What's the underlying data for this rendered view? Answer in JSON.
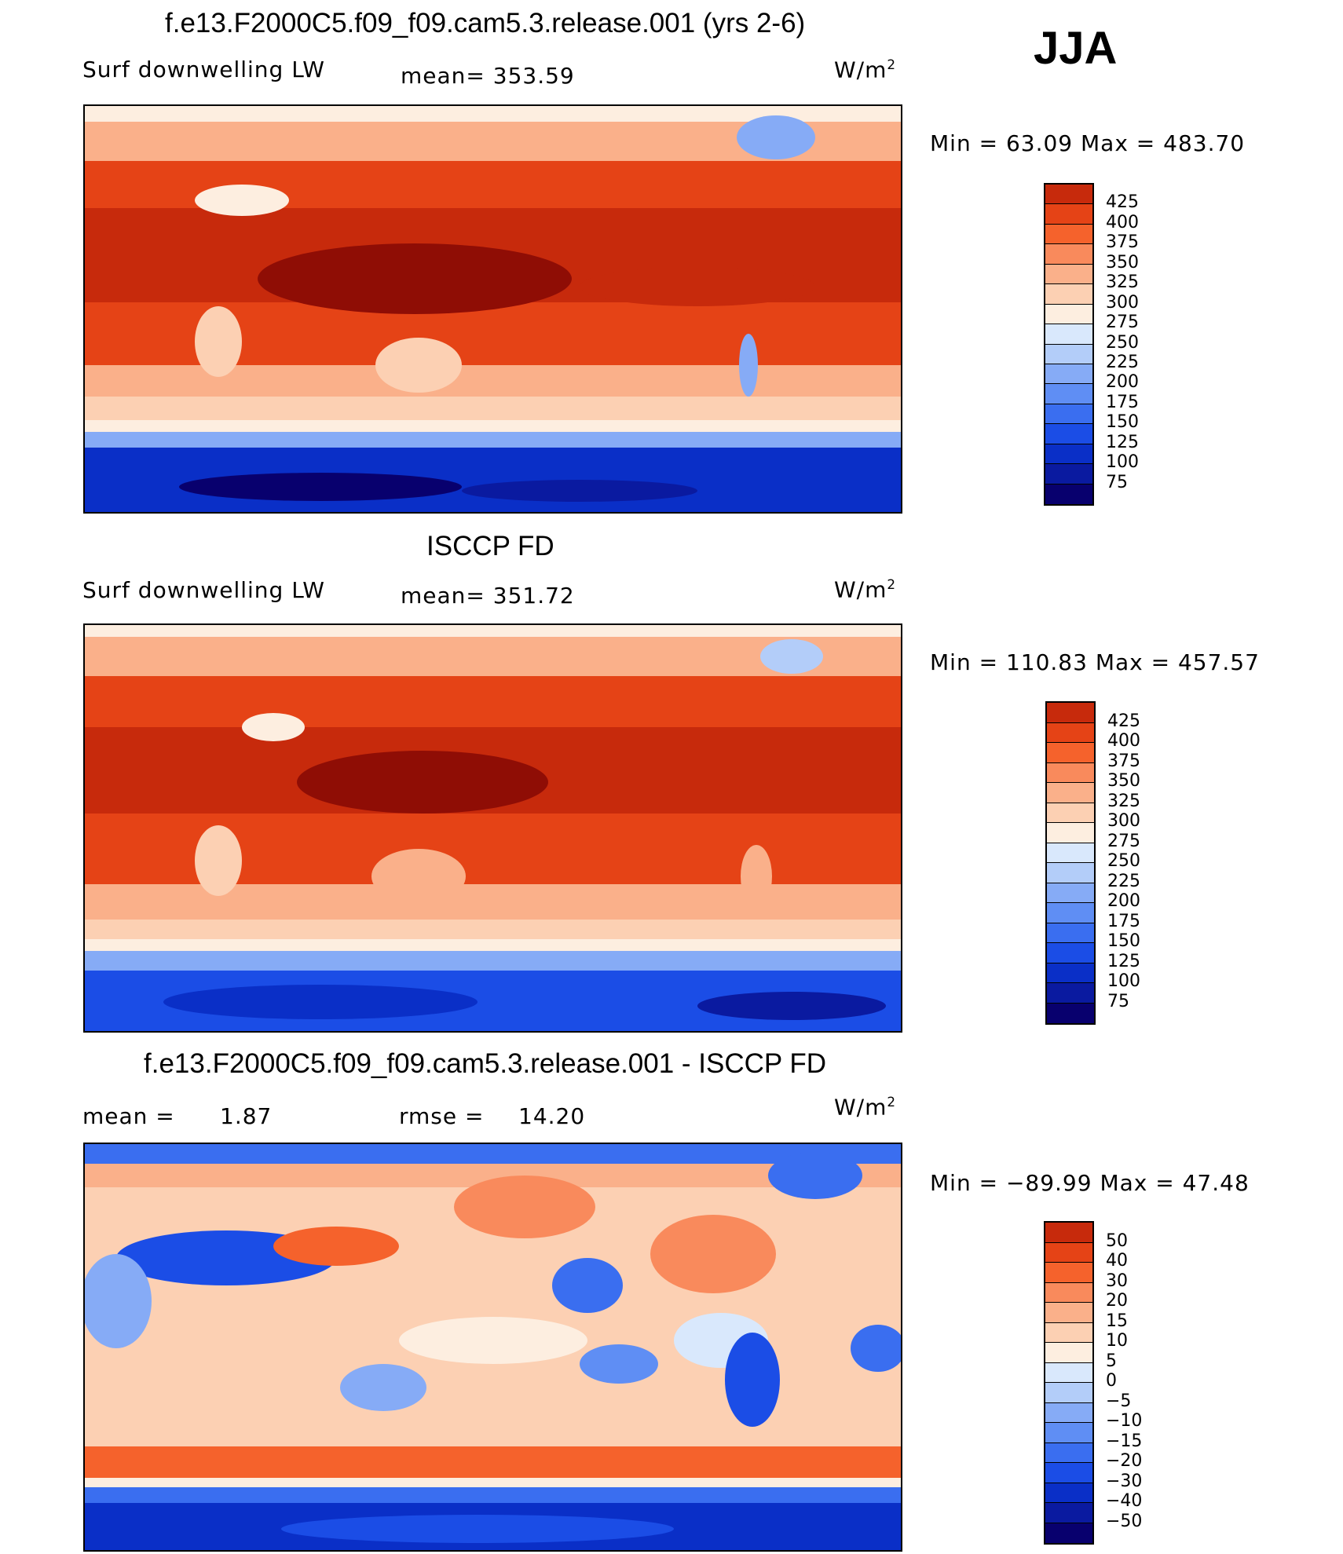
{
  "season": "JJA",
  "colors": {
    "p1": [
      "#08006e",
      "#0a1aa0",
      "#0a2fc7",
      "#1b4de6",
      "#3a6ef0",
      "#5f8ef4",
      "#86abf6",
      "#b3cdf9",
      "#d9e8fc",
      "#fdeee0",
      "#fcd0b3",
      "#fab08a",
      "#f98a5c",
      "#f5622c",
      "#e54316",
      "#c72a0c",
      "#8f0d05"
    ],
    "p3": [
      "#08006e",
      "#0a1aa0",
      "#0a2fc7",
      "#1b4de6",
      "#3a6ef0",
      "#5f8ef4",
      "#86abf6",
      "#b3cdf9",
      "#d9e8fc",
      "#fdeee0",
      "#fcd0b3",
      "#fab08a",
      "#f98a5c",
      "#f5622c",
      "#e54316",
      "#c72a0c",
      "#8f0d05"
    ]
  },
  "panel1": {
    "title": "f.e13.F2000C5.f09_f09.cam5.3.release.001 (yrs 2-6)",
    "left": "Surf  downwelling  LW",
    "mean": "mean=  353.59",
    "units": "W/m",
    "units_sup": "2",
    "minmax": "Min  =    63.09  Max  =  483.70",
    "labels": [
      "425",
      "400",
      "375",
      "350",
      "325",
      "300",
      "275",
      "250",
      "225",
      "200",
      "175",
      "150",
      "125",
      "100",
      "75"
    ]
  },
  "panel2": {
    "title": "ISCCP FD",
    "left": "Surf  downwelling  LW",
    "mean": "mean=  351.72",
    "units": "W/m",
    "units_sup": "2",
    "minmax": "Min  =  110.83  Max  =  457.57",
    "labels": [
      "425",
      "400",
      "375",
      "350",
      "325",
      "300",
      "275",
      "250",
      "225",
      "200",
      "175",
      "150",
      "125",
      "100",
      "75"
    ]
  },
  "panel3": {
    "title": "f.e13.F2000C5.f09_f09.cam5.3.release.001 - ISCCP FD",
    "mean_label": "mean  =",
    "mean_value": "1.87",
    "rmse_label": "rmse  =",
    "rmse_value": "14.20",
    "units": "W/m",
    "units_sup": "2",
    "minmax": "Min  =  −89.99  Max  =    47.48",
    "labels": [
      "50",
      "40",
      "30",
      "20",
      "15",
      "10",
      "5",
      "0",
      "−5",
      "−10",
      "−15",
      "−20",
      "−30",
      "−40",
      "−50"
    ]
  }
}
